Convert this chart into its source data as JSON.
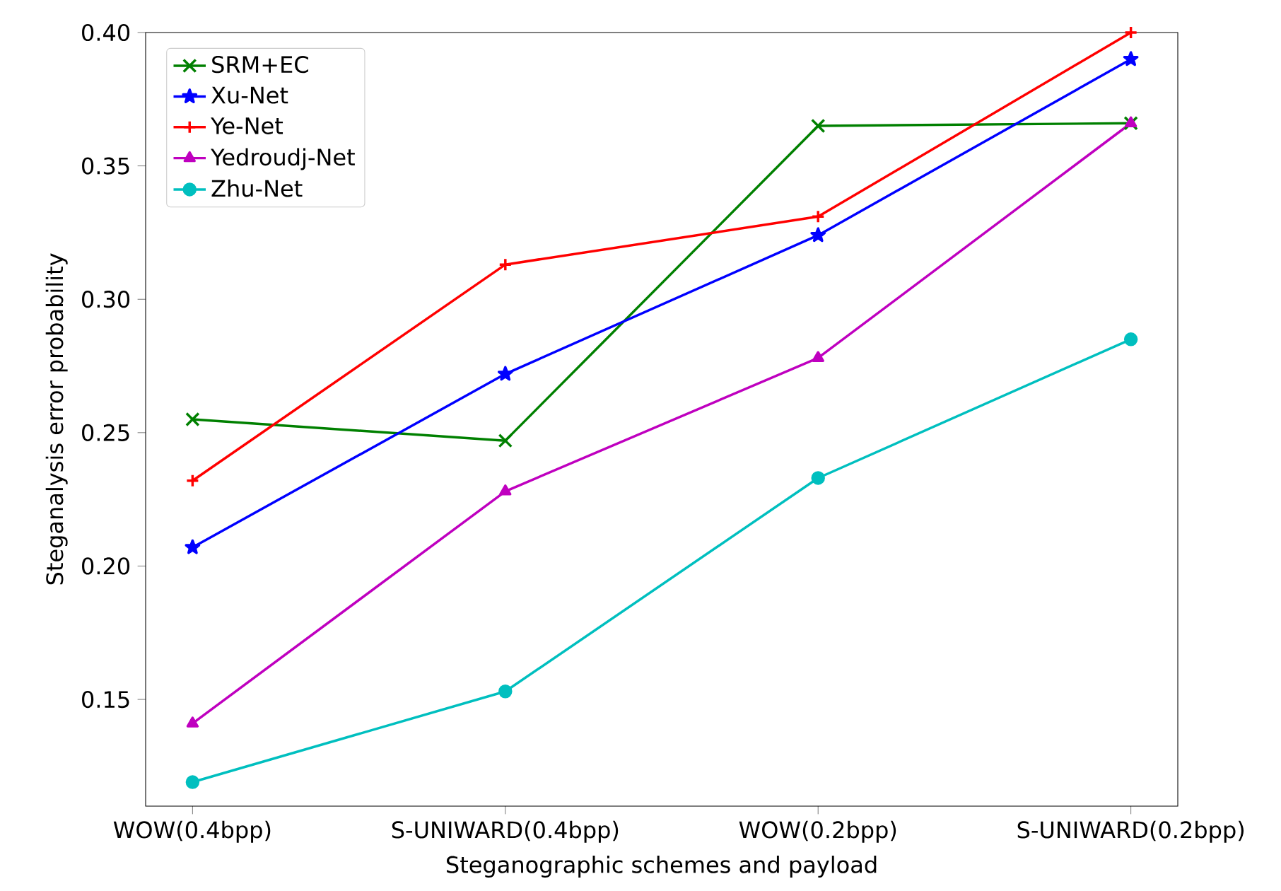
{
  "chart_data": {
    "type": "line",
    "xlabel": "Steganographic schemes and payload",
    "ylabel": "Steganalysis error probability",
    "categories": [
      "WOW(0.4bpp)",
      "S-UNIWARD(0.4bpp)",
      "WOW(0.2bpp)",
      "S-UNIWARD(0.2bpp)"
    ],
    "series": [
      {
        "name": "SRM+EC",
        "color": "#008000",
        "marker": "cross",
        "values": [
          0.255,
          0.247,
          0.365,
          0.366
        ]
      },
      {
        "name": "Xu-Net",
        "color": "#0000ff",
        "marker": "star",
        "values": [
          0.207,
          0.272,
          0.324,
          0.39
        ]
      },
      {
        "name": "Ye-Net",
        "color": "#ff0000",
        "marker": "plus",
        "values": [
          0.232,
          0.313,
          0.331,
          0.4
        ]
      },
      {
        "name": "Yedroudj-Net",
        "color": "#bf00bf",
        "marker": "triangle",
        "values": [
          0.141,
          0.228,
          0.278,
          0.366
        ]
      },
      {
        "name": "Zhu-Net",
        "color": "#00bfbf",
        "marker": "circle",
        "values": [
          0.119,
          0.153,
          0.233,
          0.285
        ]
      }
    ],
    "ylim": [
      0.11,
      0.4
    ],
    "yticks": [
      {
        "value": 0.15,
        "label": "0.15"
      },
      {
        "value": 0.2,
        "label": "0.20"
      },
      {
        "value": 0.25,
        "label": "0.25"
      },
      {
        "value": 0.3,
        "label": "0.30"
      },
      {
        "value": 0.35,
        "label": "0.35"
      },
      {
        "value": 0.4,
        "label": "0.40"
      }
    ],
    "grid": false,
    "legend": "top left"
  }
}
